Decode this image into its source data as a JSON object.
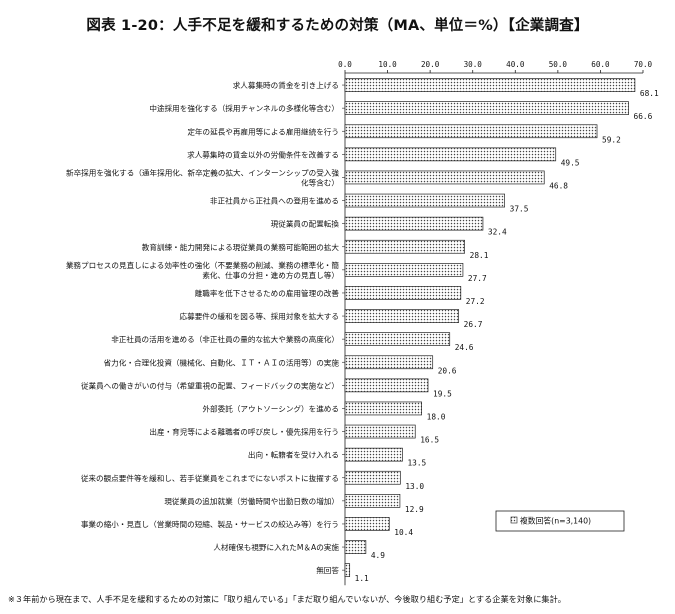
{
  "chart_data": {
    "type": "bar",
    "orientation": "horizontal",
    "title": "図表 1-20：人手不足を緩和するための対策（MA、単位＝%）【企業調査】",
    "xlim": [
      0,
      70
    ],
    "xticks": [
      "0.0",
      "10.0",
      "20.0",
      "30.0",
      "40.0",
      "50.0",
      "60.0",
      "70.0"
    ],
    "legend": {
      "label": "複数回答(n=3,140)",
      "placement": "bottom-right"
    },
    "categories": [
      "求人募集時の賃金を引き上げる",
      "中途採用を強化する（採用チャンネルの多様化等含む）",
      "定年の延長や再雇用等による雇用継続を行う",
      "求人募集時の賃金以外の労働条件を改善する",
      "新卒採用を強化する（通年採用化、新卒定義の拡大、インターンシップの受入強化等含む）",
      "非正社員から正社員への登用を進める",
      "現従業員の配置転換",
      "教育訓練・能力開発による現従業員の業務可能範囲の拡大",
      "業務プロセスの見直しによる効率性の強化（不要業務の削減、業務の標準化・簡素化、仕事の分担・進め方の見直し等）",
      "離職率を低下させるための雇用管理の改善",
      "応募要件の緩和を図る等、採用対象を拡大する",
      "非正社員の活用を進める（非正社員の量的な拡大や業務の高度化）",
      "省力化・合理化投資（機械化、自動化、ＩＴ・ＡＩの活用等）の実施",
      "従業員への働きがいの付与（希望重視の配置、フィードバックの実施など）",
      "外部委託（アウトソーシング）を進める",
      "出産・育児等による離職者の呼び戻し・優先採用を行う",
      "出向・転籍者を受け入れる",
      "従来の観点要件等を緩和し、若手従業員をこれまでにないポストに抜擢する",
      "現従業員の追加就業（労働時間や出勤日数の増加）",
      "事業の縮小・見直し（営業時間の短縮、製品・サービスの絞込み等）を行う",
      "人材確保も視野に入れたM＆Aの実施",
      "無回答"
    ],
    "category_lines": [
      [
        "求人募集時の賃金を引き上げる"
      ],
      [
        "中途採用を強化する（採用チャンネルの多様化等含む）"
      ],
      [
        "定年の延長や再雇用等による雇用継続を行う"
      ],
      [
        "求人募集時の賃金以外の労働条件を改善する"
      ],
      [
        "新卒採用を強化する（通年採用化、新卒定義の拡大、インターンシップの受入強",
        "化等含む）"
      ],
      [
        "非正社員から正社員への登用を進める"
      ],
      [
        "現従業員の配置転換"
      ],
      [
        "教育訓練・能力開発による現従業員の業務可能範囲の拡大"
      ],
      [
        "業務プロセスの見直しによる効率性の強化（不要業務の削減、業務の標準化・簡",
        "素化、仕事の分担・進め方の見直し等）"
      ],
      [
        "離職率を低下させるための雇用管理の改善"
      ],
      [
        "応募要件の緩和を図る等、採用対象を拡大する"
      ],
      [
        "非正社員の活用を進める（非正社員の量的な拡大や業務の高度化）"
      ],
      [
        "省力化・合理化投資（機械化、自動化、ＩＴ・ＡＩの活用等）の実施"
      ],
      [
        "従業員への働きがいの付与（希望重視の配置、フィードバックの実施など）"
      ],
      [
        "外部委託（アウトソーシング）を進める"
      ],
      [
        "出産・育児等による離職者の呼び戻し・優先採用を行う"
      ],
      [
        "出向・転籍者を受け入れる"
      ],
      [
        "従来の観点要件等を緩和し、若手従業員をこれまでにないポストに抜擢する"
      ],
      [
        "現従業員の追加就業（労働時間や出勤日数の増加）"
      ],
      [
        "事業の縮小・見直し（営業時間の短縮、製品・サービスの絞込み等）を行う"
      ],
      [
        "人材確保も視野に入れたM＆Aの実施"
      ],
      [
        "無回答"
      ]
    ],
    "series": [
      {
        "name": "複数回答(n=3,140)",
        "values": [
          68.1,
          66.6,
          59.2,
          49.5,
          46.8,
          37.5,
          32.4,
          28.1,
          27.7,
          27.2,
          26.7,
          24.6,
          20.6,
          19.5,
          18.0,
          16.5,
          13.5,
          13.0,
          12.9,
          10.4,
          4.9,
          1.1
        ],
        "value_labels": [
          "68.1",
          "66.6",
          "59.2",
          "49.5",
          "46.8",
          "37.5",
          "32.4",
          "28.1",
          "27.7",
          "27.2",
          "26.7",
          "24.6",
          "20.6",
          "19.5",
          "18.0",
          "16.5",
          "13.5",
          "13.0",
          "12.9",
          "10.4",
          "4.9",
          "1.1"
        ]
      }
    ],
    "bar_pattern": "dotted"
  },
  "note": "※３年前から現在まで、人手不足を緩和するための対策に「取り組んでいる」「まだ取り組んでいないが、今後取り組む予定」とする企業を対象に集計。"
}
